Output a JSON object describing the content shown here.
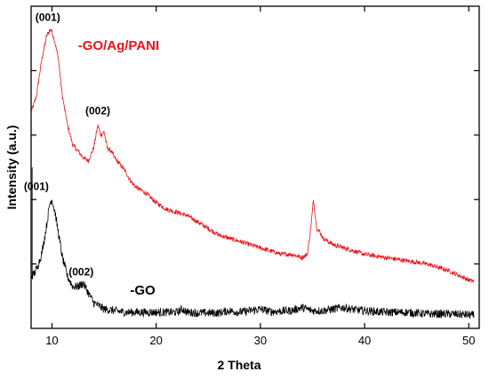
{
  "chart_data": {
    "type": "line",
    "title": "",
    "xlabel": "2 Theta",
    "ylabel": "Intensity (a.u.)",
    "xlim": [
      8,
      51
    ],
    "ylim": [
      0,
      100
    ],
    "xticks": [
      10,
      20,
      30,
      40,
      50
    ],
    "xtick_labels": [
      "10",
      "20",
      "30",
      "40",
      "50"
    ],
    "ytick_labels_shown": false,
    "grid": false,
    "series": [
      {
        "name": "-GO/Ag/PANI",
        "color": "#e8141b",
        "noise": 0.7,
        "points": [
          [
            8,
            67
          ],
          [
            8.5,
            72
          ],
          [
            9,
            83
          ],
          [
            9.5,
            91
          ],
          [
            9.9,
            93
          ],
          [
            10.2,
            90
          ],
          [
            10.6,
            84
          ],
          [
            11,
            72
          ],
          [
            11.5,
            63
          ],
          [
            12,
            57
          ],
          [
            12.5,
            55
          ],
          [
            13,
            53
          ],
          [
            13.5,
            52
          ],
          [
            14,
            56
          ],
          [
            14.4,
            63
          ],
          [
            14.7,
            60
          ],
          [
            15,
            61
          ],
          [
            15.3,
            56
          ],
          [
            15.7,
            55
          ],
          [
            16,
            53
          ],
          [
            16.5,
            51
          ],
          [
            17,
            49
          ],
          [
            17.5,
            46
          ],
          [
            18,
            44
          ],
          [
            19,
            42
          ],
          [
            20,
            39
          ],
          [
            21,
            37
          ],
          [
            22,
            36
          ],
          [
            23,
            35
          ],
          [
            24,
            33
          ],
          [
            25,
            31
          ],
          [
            26,
            29
          ],
          [
            27,
            28
          ],
          [
            28,
            27
          ],
          [
            29,
            26
          ],
          [
            30,
            25
          ],
          [
            31,
            24
          ],
          [
            32,
            23
          ],
          [
            33,
            23
          ],
          [
            34,
            22
          ],
          [
            34.5,
            23
          ],
          [
            34.8,
            30
          ],
          [
            35.1,
            40
          ],
          [
            35.4,
            31
          ],
          [
            35.7,
            30
          ],
          [
            36,
            28
          ],
          [
            37,
            26
          ],
          [
            38,
            25
          ],
          [
            39,
            24
          ],
          [
            40,
            23
          ],
          [
            41,
            22.5
          ],
          [
            42,
            22
          ],
          [
            43,
            21.5
          ],
          [
            44,
            21
          ],
          [
            45,
            20.5
          ],
          [
            46,
            20
          ],
          [
            47,
            19
          ],
          [
            48,
            18
          ],
          [
            49,
            16.5
          ],
          [
            50,
            15
          ],
          [
            50.5,
            14.5
          ]
        ]
      },
      {
        "name": "-GO",
        "color": "#000000",
        "noise": 1.3,
        "points": [
          [
            8,
            16
          ],
          [
            8.3,
            17
          ],
          [
            8.6,
            19
          ],
          [
            9,
            23
          ],
          [
            9.4,
            30
          ],
          [
            9.8,
            39
          ],
          [
            10,
            40
          ],
          [
            10.3,
            36
          ],
          [
            10.7,
            28
          ],
          [
            11,
            22
          ],
          [
            11.5,
            16
          ],
          [
            12,
            13
          ],
          [
            12.5,
            13
          ],
          [
            13,
            14
          ],
          [
            13.5,
            11
          ],
          [
            14,
            8
          ],
          [
            14.5,
            7
          ],
          [
            15,
            6
          ],
          [
            16,
            5.5
          ],
          [
            17,
            5
          ],
          [
            18,
            5
          ],
          [
            20,
            5
          ],
          [
            22,
            5
          ],
          [
            22.5,
            6
          ],
          [
            23,
            5
          ],
          [
            24,
            4.8
          ],
          [
            26,
            4.8
          ],
          [
            27,
            5.5
          ],
          [
            28,
            5
          ],
          [
            30,
            6
          ],
          [
            31,
            5.2
          ],
          [
            33,
            5.5
          ],
          [
            34,
            6.5
          ],
          [
            35,
            5.5
          ],
          [
            36,
            5.5
          ],
          [
            37,
            6
          ],
          [
            38,
            6.5
          ],
          [
            39,
            5.8
          ],
          [
            40,
            5.5
          ],
          [
            42,
            5
          ],
          [
            44,
            5
          ],
          [
            46,
            4.5
          ],
          [
            48,
            4.5
          ],
          [
            50,
            4.2
          ],
          [
            50.5,
            4
          ]
        ]
      }
    ],
    "annotations": [
      {
        "text": "(001)",
        "x": 9.6,
        "y": 95.5,
        "color": "#000000"
      },
      {
        "text": "(002)",
        "x": 14.4,
        "y": 66.5,
        "color": "#000000"
      },
      {
        "text": "(001)",
        "x": 8.5,
        "y": 43,
        "color": "#000000"
      },
      {
        "text": "(002)",
        "x": 12.8,
        "y": 16.5,
        "color": "#000000"
      }
    ],
    "legend_labels": [
      {
        "text": "-GO/Ag/PANI",
        "x": 12.5,
        "y": 86.5,
        "color": "#e8141b"
      },
      {
        "text": "-GO",
        "x": 17.5,
        "y": 10.5,
        "color": "#000000"
      }
    ]
  }
}
